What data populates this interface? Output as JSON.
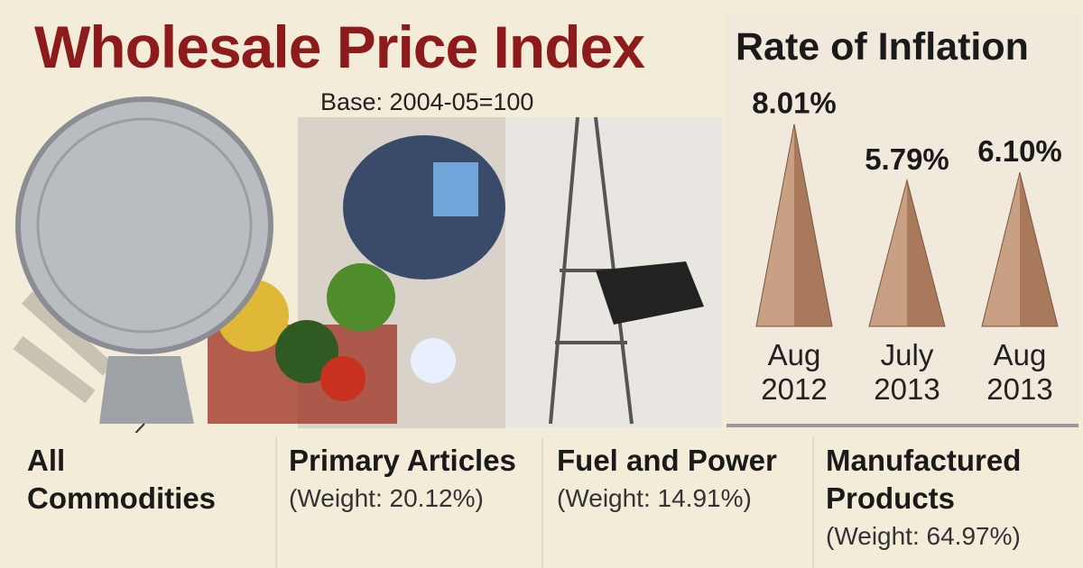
{
  "header": {
    "title": "Wholesale Price Index",
    "subtitle": "Base: 2004-05=100"
  },
  "sections": [
    {
      "name": "All Commodities"
    },
    {
      "name": "Primary Articles",
      "weight": "(Weight: 20.12%)"
    },
    {
      "name": "Fuel and Power",
      "weight": "(Weight: 14.91%)"
    },
    {
      "name": "Manufactured Products",
      "weight": "(Weight: 64.97%)"
    }
  ],
  "chart_data": {
    "type": "triangle-bar",
    "title": "Rate of Inflation",
    "categories": [
      "Aug 2012",
      "July 2013",
      "Aug 2013"
    ],
    "values": [
      8.01,
      5.79,
      6.1
    ],
    "value_labels": [
      "8.01%",
      "5.79%",
      "6.10%"
    ],
    "color": "#c49a7f"
  }
}
